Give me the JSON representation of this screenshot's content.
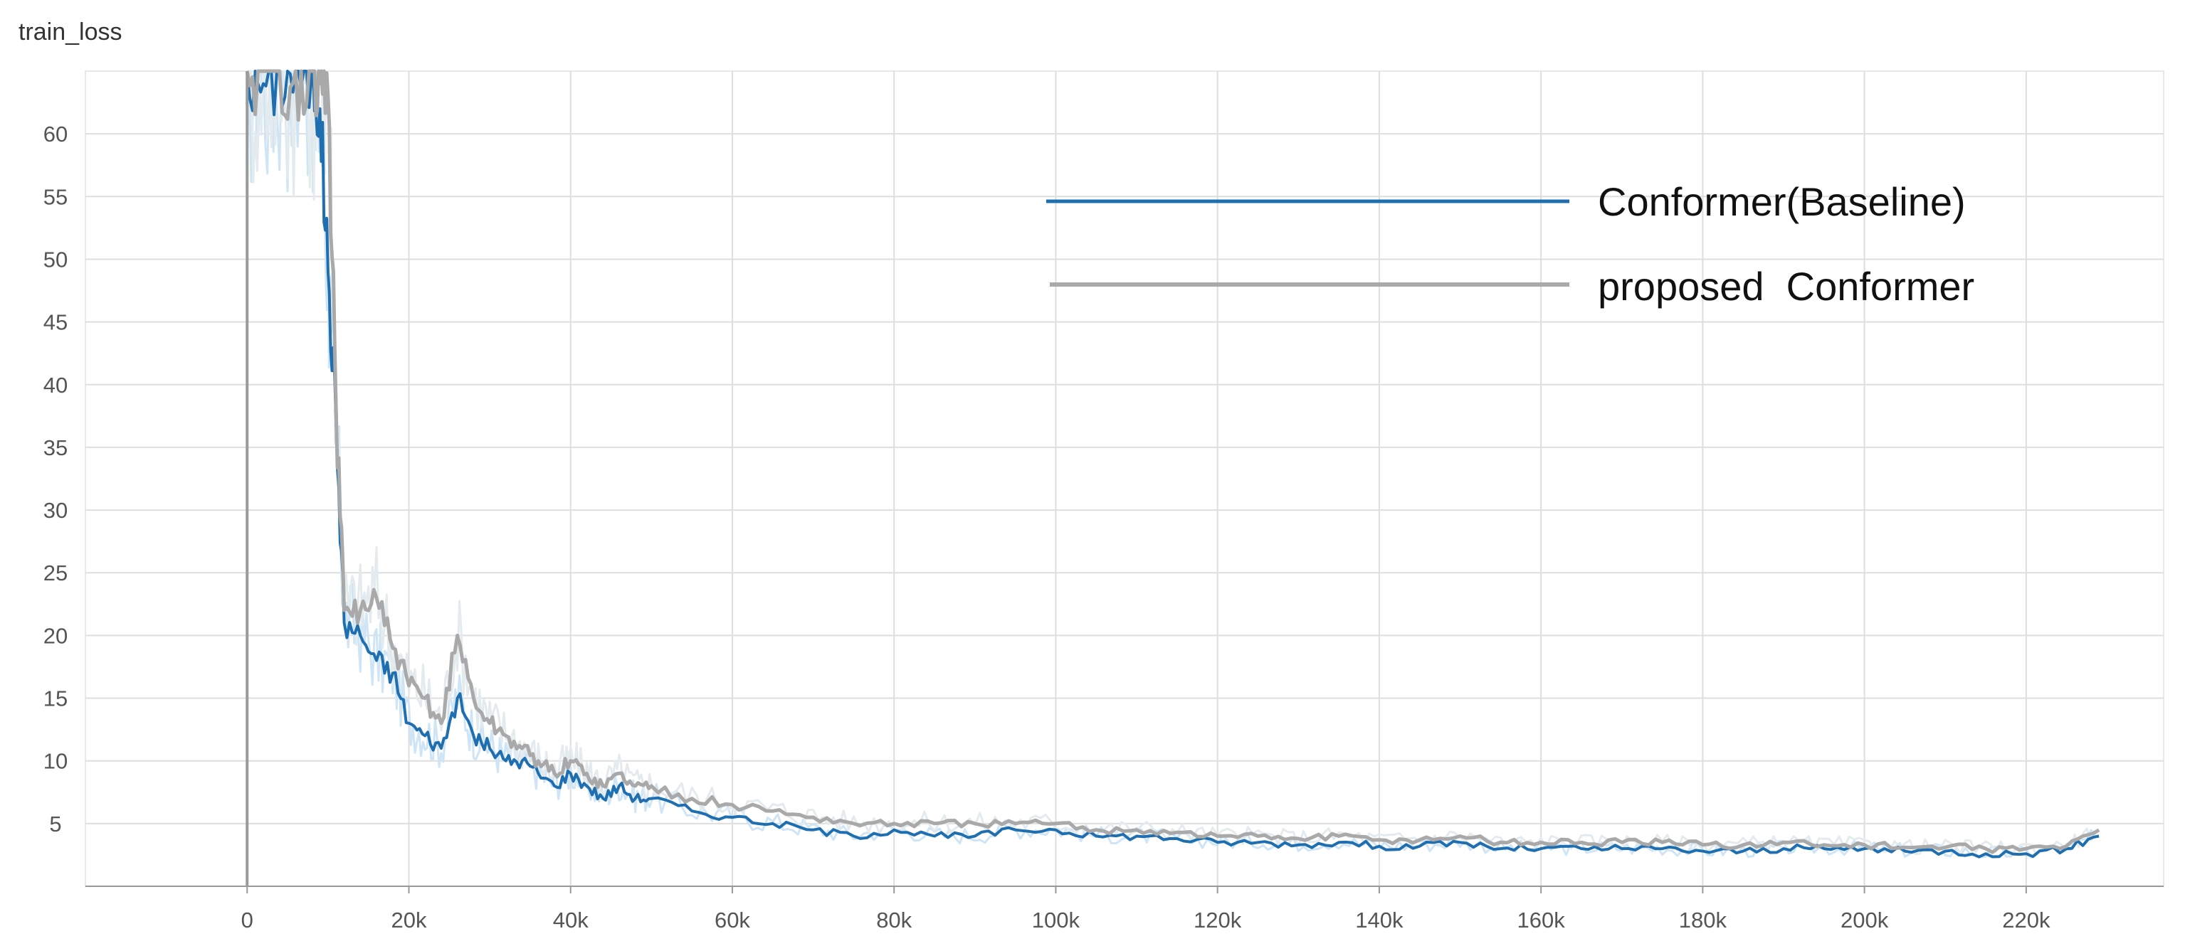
{
  "chart_data": {
    "type": "line",
    "title": "train_loss",
    "xlabel": "",
    "ylabel": "",
    "xlim": [
      -20000,
      237000
    ],
    "ylim": [
      0,
      65
    ],
    "x_ticks": [
      0,
      20000,
      40000,
      60000,
      80000,
      100000,
      120000,
      140000,
      160000,
      180000,
      200000,
      220000
    ],
    "x_tick_labels": [
      "0",
      "20k",
      "40k",
      "60k",
      "80k",
      "100k",
      "120k",
      "140k",
      "160k",
      "180k",
      "200k",
      "220k"
    ],
    "y_ticks": [
      5,
      10,
      15,
      20,
      25,
      30,
      35,
      40,
      45,
      50,
      55,
      60
    ],
    "y_tick_labels": [
      "5",
      "10",
      "15",
      "20",
      "25",
      "30",
      "35",
      "40",
      "45",
      "50",
      "55",
      "60"
    ],
    "grid": true,
    "legend_position": "top-right",
    "series": [
      {
        "name": "Conformer(Baseline)",
        "color": "#1f6fb0",
        "raw_color": "#cfe5f5",
        "x": [
          0,
          2000,
          4000,
          6000,
          8000,
          9000,
          10000,
          11000,
          12000,
          14000,
          16000,
          18000,
          20000,
          22000,
          24000,
          26000,
          28000,
          30000,
          32000,
          34000,
          36000,
          38000,
          40000,
          42000,
          44000,
          46000,
          48000,
          50000,
          55000,
          60000,
          65000,
          70000,
          75000,
          80000,
          85000,
          90000,
          95000,
          100000,
          105000,
          110000,
          115000,
          120000,
          125000,
          130000,
          135000,
          140000,
          145000,
          150000,
          155000,
          160000,
          165000,
          170000,
          175000,
          180000,
          185000,
          190000,
          195000,
          200000,
          205000,
          210000,
          215000,
          220000,
          225000,
          229000
        ],
        "y": [
          65,
          64,
          65,
          65,
          65,
          62,
          49,
          37,
          21,
          20,
          18,
          17,
          13,
          12,
          11,
          15,
          12,
          11,
          10,
          10,
          9,
          8,
          9,
          8,
          7,
          8,
          7,
          7,
          6,
          5.5,
          5,
          4.5,
          4,
          4.5,
          4,
          4,
          4.5,
          4.5,
          4,
          4,
          3.8,
          3.5,
          3.5,
          3.3,
          3.5,
          3.2,
          3.2,
          3.5,
          3,
          3,
          3,
          3,
          3,
          2.8,
          2.8,
          3,
          3,
          3,
          2.8,
          2.8,
          2.6,
          2.6,
          3,
          4
        ]
      },
      {
        "name": "proposed  Conformer",
        "color": "#a9a9a9",
        "raw_color": "#e4ebee",
        "x": [
          0,
          2000,
          4000,
          6000,
          8000,
          9000,
          10000,
          11000,
          12000,
          14000,
          16000,
          18000,
          20000,
          22000,
          24000,
          26000,
          28000,
          30000,
          32000,
          34000,
          36000,
          38000,
          40000,
          42000,
          44000,
          46000,
          48000,
          50000,
          55000,
          60000,
          65000,
          70000,
          75000,
          80000,
          85000,
          90000,
          95000,
          100000,
          105000,
          110000,
          115000,
          120000,
          125000,
          130000,
          135000,
          140000,
          145000,
          150000,
          155000,
          160000,
          165000,
          170000,
          175000,
          180000,
          185000,
          190000,
          195000,
          200000,
          205000,
          210000,
          215000,
          220000,
          225000,
          229000
        ],
        "y": [
          65,
          65,
          65,
          65,
          65,
          64,
          63,
          38,
          22,
          22,
          23,
          19,
          16,
          15,
          13,
          20,
          15,
          13,
          12,
          11,
          10,
          9,
          10,
          9,
          8,
          9,
          8,
          8,
          7,
          6.5,
          6,
          5.5,
          5,
          5,
          5,
          5,
          5,
          5,
          4.5,
          4.5,
          4.3,
          4,
          4,
          3.8,
          4,
          3.7,
          3.7,
          4,
          3.5,
          3.5,
          3.5,
          3.5,
          3.5,
          3.3,
          3.3,
          3.5,
          3.3,
          3.3,
          3.1,
          3.1,
          3,
          3,
          3.2,
          4.5
        ]
      }
    ]
  }
}
